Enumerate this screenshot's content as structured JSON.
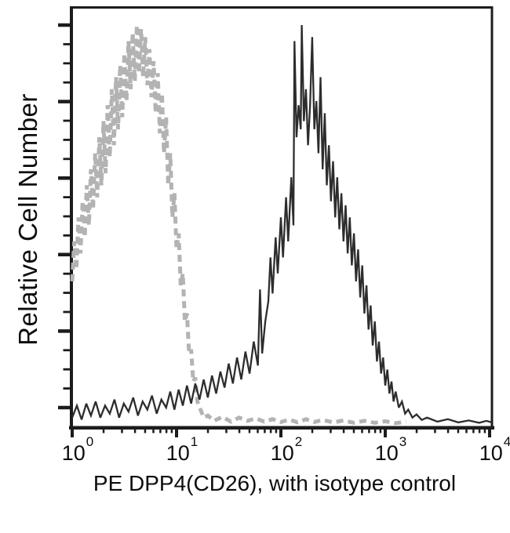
{
  "figure": {
    "background_color": "#ffffff",
    "frame_color": "#1c1c1c"
  },
  "chart_data": {
    "type": "line",
    "subtype": "flow-cytometry-histogram-overlay",
    "title": "",
    "xlabel": "PE DPP4(CD26), with isotype control",
    "ylabel": "Relative Cell Number",
    "legend": "none",
    "grid": "off",
    "x_axis": {
      "scale": "log10",
      "range": [
        1,
        10000
      ],
      "range_decades": [
        0,
        4.02
      ],
      "ticks": [
        {
          "base": "10",
          "exponent": "0",
          "value": 1
        },
        {
          "base": "10",
          "exponent": "1",
          "value": 10
        },
        {
          "base": "10",
          "exponent": "2",
          "value": 100
        },
        {
          "base": "10",
          "exponent": "3",
          "value": 1000
        },
        {
          "base": "10",
          "exponent": "4",
          "value": 10000
        }
      ],
      "minor_ticks": "log positions 2-9 per decade"
    },
    "y_axis": {
      "unit": "relative cell number (normalized 0-1)",
      "tick_labels_visible": false,
      "major_tick_count": 6,
      "minor_ticks_per_major_interval": 3
    },
    "series": [
      {
        "name": "isotype control",
        "line_style": "dashed",
        "color": "#b3b3b3",
        "stroke_width": 5,
        "dash_pattern": [
          9,
          6
        ],
        "peak_x_value": 4.2,
        "peak_x_log10": 0.62,
        "points_log10x_relheight": [
          [
            0.0,
            0.36
          ],
          [
            0.02,
            0.46
          ],
          [
            0.04,
            0.39
          ],
          [
            0.06,
            0.52
          ],
          [
            0.08,
            0.43
          ],
          [
            0.1,
            0.56
          ],
          [
            0.12,
            0.47
          ],
          [
            0.14,
            0.6
          ],
          [
            0.16,
            0.5
          ],
          [
            0.18,
            0.64
          ],
          [
            0.2,
            0.54
          ],
          [
            0.22,
            0.68
          ],
          [
            0.24,
            0.57
          ],
          [
            0.26,
            0.72
          ],
          [
            0.28,
            0.6
          ],
          [
            0.3,
            0.76
          ],
          [
            0.32,
            0.63
          ],
          [
            0.34,
            0.8
          ],
          [
            0.36,
            0.67
          ],
          [
            0.38,
            0.84
          ],
          [
            0.4,
            0.7
          ],
          [
            0.42,
            0.87
          ],
          [
            0.44,
            0.74
          ],
          [
            0.46,
            0.9
          ],
          [
            0.48,
            0.77
          ],
          [
            0.5,
            0.93
          ],
          [
            0.52,
            0.81
          ],
          [
            0.54,
            0.96
          ],
          [
            0.56,
            0.84
          ],
          [
            0.58,
            0.98
          ],
          [
            0.6,
            0.86
          ],
          [
            0.62,
            1.0
          ],
          [
            0.64,
            0.88
          ],
          [
            0.66,
            0.99
          ],
          [
            0.68,
            0.87
          ],
          [
            0.7,
            0.97
          ],
          [
            0.72,
            0.85
          ],
          [
            0.74,
            0.94
          ],
          [
            0.76,
            0.82
          ],
          [
            0.78,
            0.91
          ],
          [
            0.8,
            0.78
          ],
          [
            0.82,
            0.88
          ],
          [
            0.84,
            0.73
          ],
          [
            0.86,
            0.83
          ],
          [
            0.88,
            0.68
          ],
          [
            0.9,
            0.77
          ],
          [
            0.92,
            0.6
          ],
          [
            0.94,
            0.68
          ],
          [
            0.96,
            0.52
          ],
          [
            0.98,
            0.58
          ],
          [
            1.0,
            0.44
          ],
          [
            1.02,
            0.48
          ],
          [
            1.04,
            0.35
          ],
          [
            1.06,
            0.38
          ],
          [
            1.08,
            0.26
          ],
          [
            1.1,
            0.28
          ],
          [
            1.12,
            0.18
          ],
          [
            1.14,
            0.19
          ],
          [
            1.16,
            0.11
          ],
          [
            1.18,
            0.12
          ],
          [
            1.2,
            0.06
          ],
          [
            1.23,
            0.04
          ],
          [
            1.26,
            0.02
          ],
          [
            1.3,
            0.025
          ],
          [
            1.36,
            0.012
          ],
          [
            1.44,
            0.022
          ],
          [
            1.52,
            0.01
          ],
          [
            1.6,
            0.02
          ],
          [
            1.68,
            0.012
          ],
          [
            1.76,
            0.018
          ],
          [
            1.84,
            0.01
          ],
          [
            1.92,
            0.016
          ],
          [
            2.0,
            0.009
          ],
          [
            2.08,
            0.015
          ],
          [
            2.16,
            0.008
          ],
          [
            2.24,
            0.016
          ],
          [
            2.32,
            0.009
          ],
          [
            2.4,
            0.014
          ],
          [
            2.5,
            0.008
          ],
          [
            2.6,
            0.013
          ],
          [
            2.7,
            0.007
          ],
          [
            2.8,
            0.012
          ],
          [
            2.9,
            0.007
          ],
          [
            3.0,
            0.011
          ],
          [
            3.1,
            0.006
          ],
          [
            3.2,
            0.01
          ]
        ]
      },
      {
        "name": "PE DPP4(CD26)",
        "line_style": "solid",
        "color": "#2d2d2d",
        "stroke_width": 2.3,
        "peak_x_value": 160,
        "peak_x_log10": 2.2,
        "points_log10x_relheight": [
          [
            0.0,
            0.02
          ],
          [
            0.045,
            0.05
          ],
          [
            0.09,
            0.015
          ],
          [
            0.135,
            0.055
          ],
          [
            0.18,
            0.025
          ],
          [
            0.225,
            0.06
          ],
          [
            0.27,
            0.02
          ],
          [
            0.315,
            0.05
          ],
          [
            0.36,
            0.03
          ],
          [
            0.405,
            0.065
          ],
          [
            0.45,
            0.02
          ],
          [
            0.495,
            0.055
          ],
          [
            0.54,
            0.035
          ],
          [
            0.585,
            0.07
          ],
          [
            0.63,
            0.025
          ],
          [
            0.675,
            0.06
          ],
          [
            0.72,
            0.04
          ],
          [
            0.765,
            0.075
          ],
          [
            0.81,
            0.03
          ],
          [
            0.855,
            0.065
          ],
          [
            0.9,
            0.045
          ],
          [
            0.94,
            0.085
          ],
          [
            0.98,
            0.04
          ],
          [
            1.02,
            0.09
          ],
          [
            1.06,
            0.05
          ],
          [
            1.1,
            0.1
          ],
          [
            1.14,
            0.055
          ],
          [
            1.18,
            0.105
          ],
          [
            1.22,
            0.065
          ],
          [
            1.26,
            0.115
          ],
          [
            1.3,
            0.07
          ],
          [
            1.34,
            0.125
          ],
          [
            1.38,
            0.08
          ],
          [
            1.42,
            0.135
          ],
          [
            1.46,
            0.095
          ],
          [
            1.5,
            0.155
          ],
          [
            1.54,
            0.105
          ],
          [
            1.58,
            0.17
          ],
          [
            1.62,
            0.115
          ],
          [
            1.66,
            0.185
          ],
          [
            1.7,
            0.13
          ],
          [
            1.74,
            0.21
          ],
          [
            1.78,
            0.15
          ],
          [
            1.8,
            0.34
          ],
          [
            1.82,
            0.18
          ],
          [
            1.85,
            0.26
          ],
          [
            1.88,
            0.31
          ],
          [
            1.9,
            0.42
          ],
          [
            1.92,
            0.33
          ],
          [
            1.95,
            0.47
          ],
          [
            1.97,
            0.38
          ],
          [
            2.0,
            0.52
          ],
          [
            2.02,
            0.42
          ],
          [
            2.05,
            0.57
          ],
          [
            2.07,
            0.46
          ],
          [
            2.1,
            0.62
          ],
          [
            2.12,
            0.5
          ],
          [
            2.13,
            0.96
          ],
          [
            2.15,
            0.72
          ],
          [
            2.17,
            0.8
          ],
          [
            2.19,
            0.74
          ],
          [
            2.2,
            1.0
          ],
          [
            2.22,
            0.76
          ],
          [
            2.24,
            0.84
          ],
          [
            2.26,
            0.7
          ],
          [
            2.28,
            0.8
          ],
          [
            2.3,
            0.97
          ],
          [
            2.32,
            0.74
          ],
          [
            2.34,
            0.81
          ],
          [
            2.36,
            0.68
          ],
          [
            2.38,
            0.87
          ],
          [
            2.4,
            0.64
          ],
          [
            2.42,
            0.78
          ],
          [
            2.44,
            0.6
          ],
          [
            2.46,
            0.7
          ],
          [
            2.48,
            0.56
          ],
          [
            2.5,
            0.66
          ],
          [
            2.52,
            0.52
          ],
          [
            2.54,
            0.62
          ],
          [
            2.56,
            0.49
          ],
          [
            2.58,
            0.58
          ],
          [
            2.6,
            0.46
          ],
          [
            2.62,
            0.55
          ],
          [
            2.64,
            0.43
          ],
          [
            2.66,
            0.52
          ],
          [
            2.68,
            0.4
          ],
          [
            2.7,
            0.48
          ],
          [
            2.72,
            0.36
          ],
          [
            2.74,
            0.44
          ],
          [
            2.76,
            0.32
          ],
          [
            2.78,
            0.4
          ],
          [
            2.8,
            0.28
          ],
          [
            2.82,
            0.35
          ],
          [
            2.84,
            0.24
          ],
          [
            2.86,
            0.3
          ],
          [
            2.88,
            0.2
          ],
          [
            2.9,
            0.26
          ],
          [
            2.92,
            0.16
          ],
          [
            2.94,
            0.21
          ],
          [
            2.96,
            0.13
          ],
          [
            2.98,
            0.17
          ],
          [
            3.0,
            0.1
          ],
          [
            3.02,
            0.14
          ],
          [
            3.04,
            0.08
          ],
          [
            3.06,
            0.11
          ],
          [
            3.08,
            0.06
          ],
          [
            3.1,
            0.085
          ],
          [
            3.13,
            0.045
          ],
          [
            3.16,
            0.06
          ],
          [
            3.19,
            0.03
          ],
          [
            3.22,
            0.04
          ],
          [
            3.26,
            0.02
          ],
          [
            3.3,
            0.028
          ],
          [
            3.35,
            0.014
          ],
          [
            3.4,
            0.02
          ],
          [
            3.5,
            0.01
          ],
          [
            3.6,
            0.016
          ],
          [
            3.7,
            0.008
          ],
          [
            3.8,
            0.013
          ],
          [
            3.9,
            0.007
          ],
          [
            3.97,
            0.012
          ],
          [
            4.02,
            0.008
          ]
        ]
      }
    ]
  }
}
